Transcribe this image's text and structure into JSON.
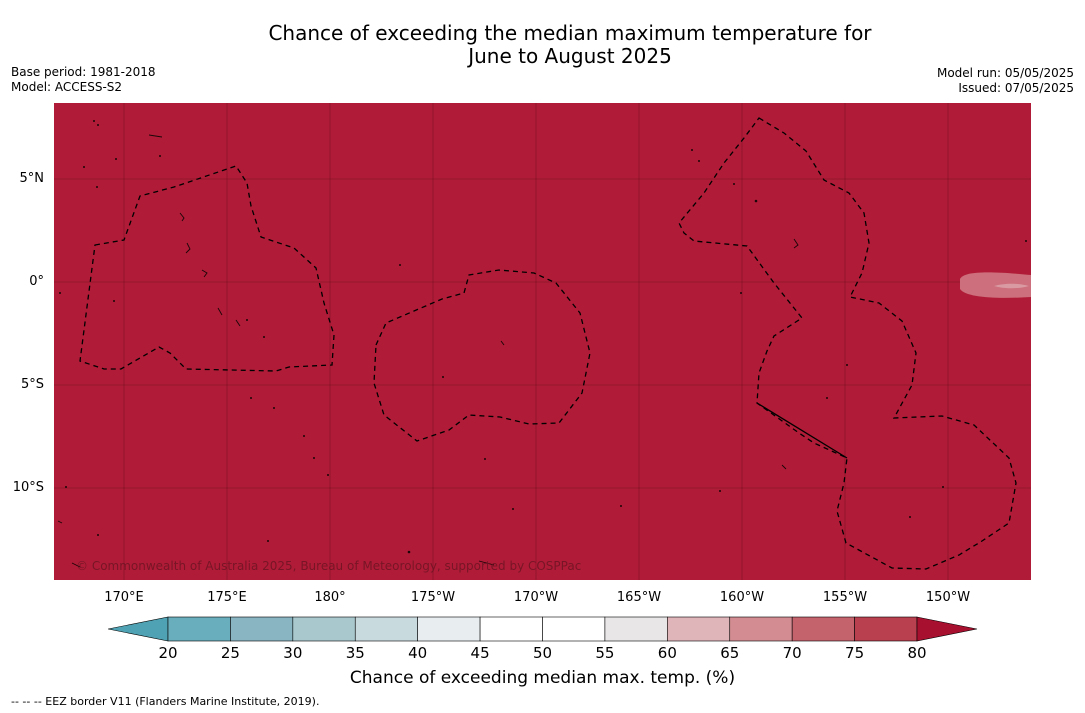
{
  "title_line1": "Chance of exceeding the median maximum temperature for",
  "title_line2": "June to August 2025",
  "base_period": "Base period: 1981-2018",
  "model": "Model: ACCESS-S2",
  "model_run": "Model run: 05/05/2025",
  "issued": "Issued: 07/05/2025",
  "lat_labels": [
    "5°N",
    "0°",
    "5°S",
    "10°S"
  ],
  "lon_labels": [
    "170°E",
    "175°E",
    "180°",
    "175°W",
    "170°W",
    "165°W",
    "160°W",
    "155°W",
    "150°W"
  ],
  "copyright": "© Commonwealth of Australia 2025, Bureau of Meteorology, supported by COSPPac",
  "colorbar": {
    "ticks": [
      "20",
      "25",
      "30",
      "35",
      "40",
      "45",
      "50",
      "55",
      "60",
      "65",
      "70",
      "75",
      "80"
    ],
    "colors": [
      "#69aebd",
      "#88b5c1",
      "#a9c8cd",
      "#c8dade",
      "#e8eef0",
      "#ffffff",
      "#ffffff",
      "#e8e6e7",
      "#dfb5b9",
      "#d28c92",
      "#c5636d",
      "#b8404f"
    ],
    "under_color": "#4fa2b3",
    "over_color": "#a8102f",
    "label": "Chance of exceeding median max. temp. (%)"
  },
  "footnote": "--  --  -- EEZ border V11 (Flanders Marine Institute, 2019).",
  "map_colors": {
    "dominant": "#b01c37",
    "patch": "#d07581"
  }
}
